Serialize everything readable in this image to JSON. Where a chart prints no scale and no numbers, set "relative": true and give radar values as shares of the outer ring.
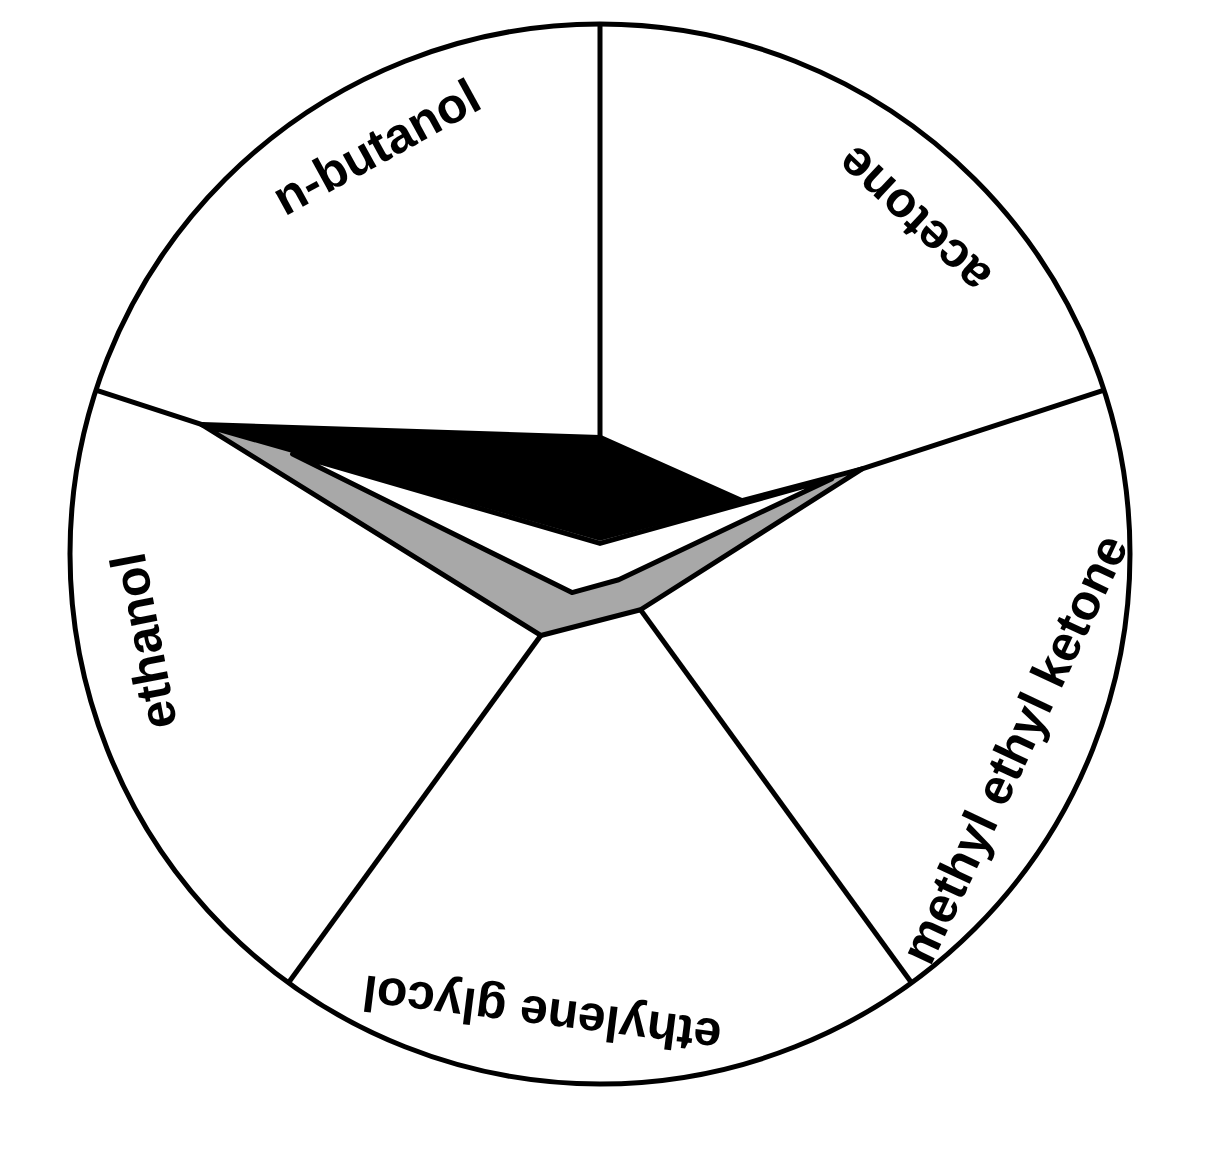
{
  "chart_data": {
    "type": "radar",
    "relative": true,
    "categories": [
      "n-butanol",
      "acetone",
      "methyl ethyl ketone",
      "ethylene glycol",
      "ethanol"
    ],
    "series": [
      {
        "color": "#000000",
        "values": [
          0.22,
          0.3,
          0.02,
          0.02,
          0.79
        ]
      },
      {
        "color": "#a8a8a8",
        "values": [
          0.03,
          0.52,
          0.13,
          0.19,
          0.79
        ]
      },
      {
        "color": "#ffffff",
        "values": [
          0.02,
          0.46,
          0.06,
          0.09,
          0.61
        ]
      }
    ],
    "legend": false,
    "marker": "none"
  }
}
